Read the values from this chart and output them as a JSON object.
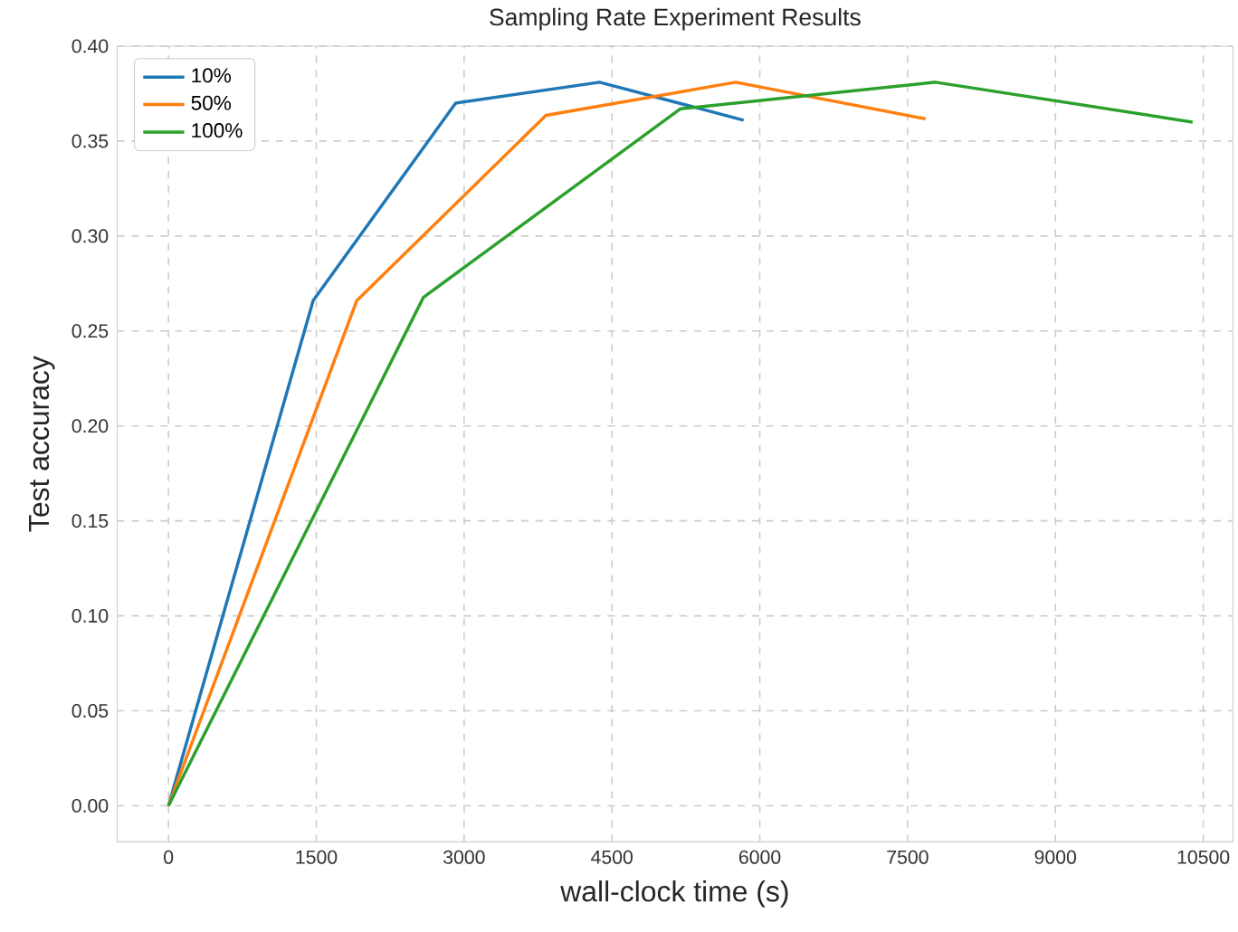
{
  "chart_data": {
    "type": "line",
    "title": "Sampling Rate Experiment Results",
    "xlabel": "wall-clock time (s)",
    "ylabel": "Test accuracy",
    "series": [
      {
        "name": "10%",
        "color": "#1f77b4",
        "x": [
          0,
          1468,
          2914,
          4375,
          5836
        ],
        "values": [
          0.0,
          0.266,
          0.37,
          0.381,
          0.361
        ]
      },
      {
        "name": "50%",
        "color": "#ff7f0e",
        "x": [
          0,
          1911,
          3830,
          5756,
          7682
        ],
        "values": [
          0.0,
          0.266,
          0.3635,
          0.381,
          0.3617
        ]
      },
      {
        "name": "100%",
        "color": "#2ca02c",
        "x": [
          0,
          2587,
          5196,
          7783,
          10392
        ],
        "values": [
          0.0,
          0.2677,
          0.367,
          0.381,
          0.36
        ]
      }
    ],
    "xlim": [
      -520,
      10800
    ],
    "ylim": [
      -0.019,
      0.4
    ],
    "xticks": [
      0,
      1500,
      3000,
      4500,
      6000,
      7500,
      9000,
      10500
    ],
    "yticks": [
      {
        "value": 0,
        "label": "0.00"
      },
      {
        "value": 0.05,
        "label": "0.05"
      },
      {
        "value": 0.1,
        "label": "0.10"
      },
      {
        "value": 0.15,
        "label": "0.15"
      },
      {
        "value": 0.2,
        "label": "0.20"
      },
      {
        "value": 0.25,
        "label": "0.25"
      },
      {
        "value": 0.3,
        "label": "0.30"
      },
      {
        "value": 0.35,
        "label": "0.35"
      },
      {
        "value": 0.4,
        "label": "0.40"
      }
    ],
    "grid": true,
    "legend": "top left",
    "marker": "none",
    "line_style": "solid"
  }
}
